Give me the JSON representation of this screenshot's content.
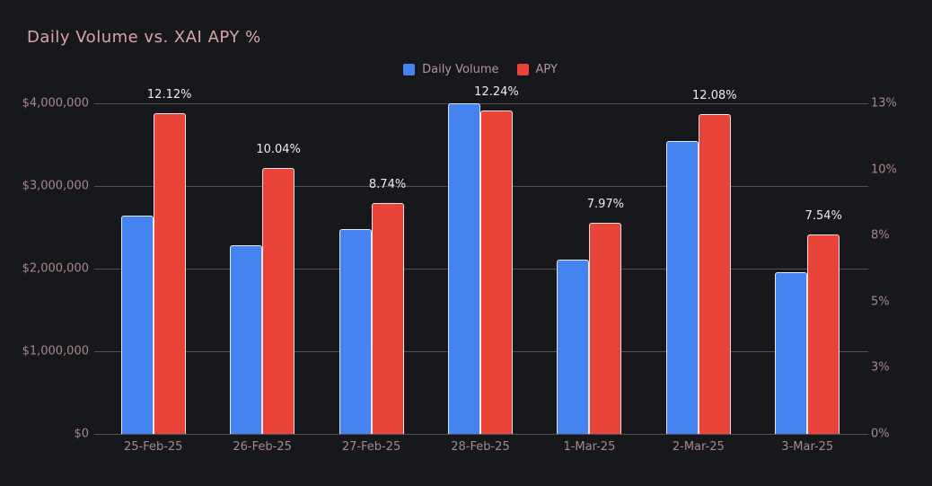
{
  "title": "Daily Volume vs. XAI APY %",
  "legend": {
    "items": [
      {
        "label": "Daily Volume",
        "color": "#4583f1"
      },
      {
        "label": "APY",
        "color": "#e9433a"
      }
    ]
  },
  "chart_data": {
    "type": "bar",
    "title": "Daily Volume vs. XAI APY %",
    "categories": [
      "25-Feb-25",
      "26-Feb-25",
      "27-Feb-25",
      "28-Feb-25",
      "1-Mar-25",
      "2-Mar-25",
      "3-Mar-25"
    ],
    "series": [
      {
        "name": "Daily Volume",
        "axis": "left",
        "color": "#4583f1",
        "values": [
          2640000,
          2280000,
          2480000,
          4000000,
          2110000,
          3540000,
          1960000
        ]
      },
      {
        "name": "APY",
        "axis": "right",
        "color": "#e9433a",
        "values": [
          12.12,
          10.04,
          8.74,
          12.24,
          7.97,
          12.08,
          7.54
        ],
        "data_labels": [
          "12.12%",
          "10.04%",
          "8.74%",
          "12.24%",
          "7.97%",
          "12.08%",
          "7.54%"
        ]
      }
    ],
    "left_axis": {
      "min": 0,
      "max": 4000000,
      "ticks": [
        "$4,000,000",
        "$3,000,000",
        "$2,000,000",
        "$1,000,000",
        "$0"
      ]
    },
    "right_axis": {
      "min": 0,
      "max": 13,
      "bar_scale_max": 12.5,
      "ticks": [
        "13%",
        "10%",
        "8%",
        "5%",
        "3%",
        "0%"
      ]
    },
    "grid": true,
    "legend_position": "top-center"
  },
  "colors": {
    "background": "#17181c",
    "title": "#d9a4aa",
    "axis_label": "#a8878c",
    "legend_text": "#b5939a",
    "data_label": "#ededed",
    "gridline": "#4e5157",
    "bar_border": "#f2f2f2",
    "blue": "#4583f1",
    "red": "#e9433a"
  }
}
